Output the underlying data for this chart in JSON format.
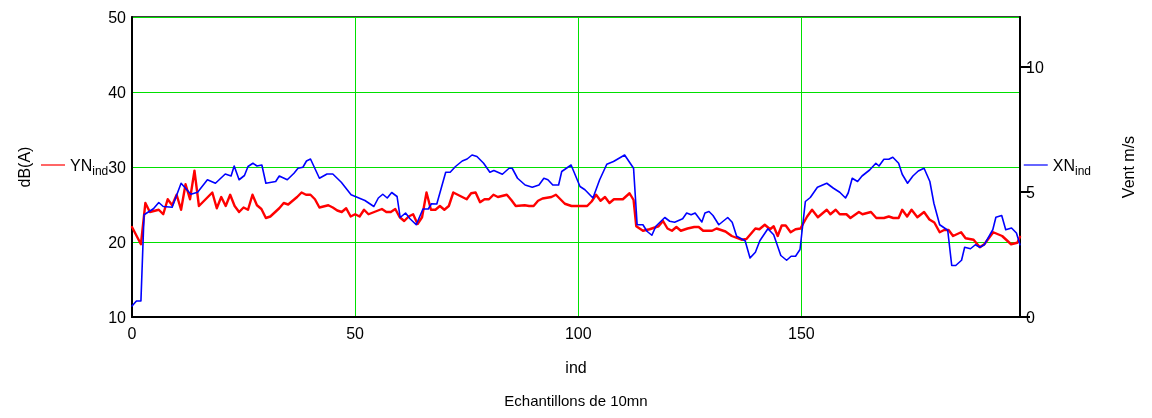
{
  "chart_data": {
    "type": "line",
    "xlabel": "ind",
    "ylabel": "dB(A)",
    "y2label": "Vent m/s",
    "annotations": [
      "Echantillons de 10mn"
    ],
    "xlim": [
      0,
      199
    ],
    "xticks": [
      0,
      50,
      100,
      150
    ],
    "ylim": [
      10,
      50
    ],
    "yticks": [
      10,
      20,
      30,
      40,
      50
    ],
    "y2lim": [
      0,
      12
    ],
    "y2ticks": [
      0,
      5,
      10
    ],
    "grid": true,
    "legend": "left",
    "marker": "none",
    "line_style": "solid",
    "series": [
      {
        "name": "YN$_{ind}$",
        "color": "#ff0000",
        "x": [
          0,
          2,
          3,
          4,
          6,
          7,
          8,
          9,
          10,
          11,
          12,
          13,
          14,
          15,
          18,
          19,
          20,
          21,
          22,
          23,
          24,
          25,
          26,
          27,
          28,
          29,
          30,
          31,
          33,
          34,
          35,
          37,
          38,
          39,
          40,
          41,
          42,
          44,
          45,
          46,
          47,
          48,
          49,
          50,
          51,
          52,
          53,
          56,
          57,
          58,
          59,
          60,
          61,
          62,
          63,
          64,
          65,
          66,
          67,
          68,
          69,
          70,
          71,
          72,
          74,
          75,
          76,
          77,
          78,
          79,
          80,
          81,
          82,
          84,
          85,
          86,
          88,
          89,
          90,
          91,
          92,
          94,
          95,
          97,
          98.5,
          102,
          103,
          104,
          105,
          106,
          107,
          108,
          110,
          111.5,
          112.4,
          113,
          114.5,
          116,
          118,
          119,
          120,
          121,
          122,
          123,
          124.5,
          126,
          127,
          128,
          130,
          131,
          133,
          134.4,
          136.6,
          137.7,
          139.7,
          140.6,
          141.8,
          143,
          143.8,
          144.7,
          145.6,
          146.5,
          147.6,
          148.7,
          149.8,
          151.3,
          152.4,
          153.7,
          155.7,
          156.5,
          157.7,
          158.6,
          160.1,
          161,
          162.9,
          163.7,
          165.6,
          166.8,
          168.5,
          169.6,
          170.6,
          171.8,
          172.6,
          173.7,
          174.7,
          176,
          177.5,
          178.7,
          179.8,
          181,
          182,
          183,
          184,
          185.8,
          186.8,
          188.6,
          190,
          191,
          193,
          195,
          197,
          198.4,
          199
        ],
        "values": [
          22.0,
          19.7,
          25.2,
          24.0,
          24.3,
          23.7,
          25.7,
          24.9,
          26.3,
          24.3,
          27.7,
          25.7,
          29.5,
          24.8,
          26.6,
          24.5,
          26.0,
          24.8,
          26.3,
          24.8,
          24.0,
          24.6,
          24.3,
          26.3,
          24.9,
          24.4,
          23.2,
          23.4,
          24.5,
          25.2,
          25.0,
          26.0,
          26.6,
          26.3,
          26.3,
          25.7,
          24.6,
          24.9,
          24.6,
          24.2,
          24.0,
          24.5,
          23.4,
          23.7,
          23.4,
          24.3,
          23.7,
          24.4,
          24.0,
          24.0,
          24.4,
          23.3,
          22.8,
          23.4,
          23.7,
          22.4,
          23.3,
          26.6,
          24.3,
          24.3,
          24.8,
          24.3,
          24.8,
          26.6,
          26.0,
          25.7,
          26.5,
          26.6,
          25.3,
          25.7,
          25.7,
          26.3,
          26.0,
          26.3,
          25.6,
          24.8,
          24.9,
          24.8,
          24.8,
          25.5,
          25.8,
          26.0,
          26.3,
          25.1,
          24.8,
          24.8,
          25.4,
          26.3,
          25.5,
          26.0,
          25.2,
          25.7,
          25.7,
          26.5,
          25.6,
          22.1,
          21.5,
          21.7,
          22.1,
          22.8,
          21.8,
          21.5,
          22.0,
          21.5,
          21.8,
          22.0,
          22.0,
          21.5,
          21.5,
          21.8,
          21.4,
          20.8,
          20.3,
          20.4,
          21.8,
          21.7,
          22.3,
          21.7,
          22.1,
          20.8,
          22.2,
          22.2,
          21.3,
          21.7,
          21.8,
          23.4,
          24.3,
          23.3,
          24.3,
          23.7,
          24.3,
          23.7,
          23.7,
          23.2,
          24.0,
          23.7,
          24.0,
          23.2,
          23.2,
          23.4,
          23.2,
          23.2,
          24.3,
          23.4,
          24.3,
          23.3,
          24.0,
          23.0,
          22.6,
          21.3,
          21.6,
          21.6,
          20.8,
          21.3,
          20.5,
          20.3,
          19.3,
          19.7,
          21.3,
          20.8,
          19.7,
          19.9,
          20.7
        ]
      },
      {
        "name": "XN$_{ind}$",
        "color": "#0000ff",
        "axis": "y2",
        "x": [
          0,
          1,
          2,
          2.7,
          4.8,
          6,
          7,
          9,
          11,
          13.2,
          14.7,
          16.9,
          18.7,
          20.9,
          22.2,
          22.9,
          24,
          25.2,
          26,
          27.1,
          28,
          29.1,
          30,
          32.2,
          33,
          34.8,
          36.3,
          37.2,
          38.3,
          39.1,
          40,
          42,
          43.7,
          45,
          46.9,
          49.1,
          52.2,
          54.2,
          55.2,
          56.2,
          57.2,
          58.2,
          59.4,
          60.1,
          61.3,
          62.3,
          63.7,
          65.2,
          66.4,
          67.1,
          68.3,
          69.2,
          70.3,
          71.3,
          72.5,
          74,
          75.1,
          76.2,
          77.3,
          78.8,
          80.2,
          81.1,
          83,
          84.5,
          85.2,
          86.4,
          88.1,
          89.7,
          91.2,
          92.3,
          93.2,
          94.3,
          95.6,
          96.3,
          98.4,
          100.4,
          101.5,
          103.3,
          104.8,
          106.4,
          107.9,
          110.4,
          112.4,
          113.2,
          114.5,
          115.4,
          116.5,
          117.4,
          119.4,
          120.5,
          121.6,
          123.4,
          124.3,
          125.3,
          126.2,
          127.7,
          128.4,
          129.3,
          130.2,
          131.5,
          133.5,
          134.5,
          135.5,
          137.4,
          138.5,
          139.7,
          140.7,
          142.5,
          143.8,
          145.4,
          146.7,
          147.7,
          148.7,
          149.7,
          150.9,
          152,
          153.6,
          155.7,
          157.2,
          158.6,
          159.9,
          160.5,
          161.4,
          162.6,
          163.6,
          165.3,
          166.7,
          167.4,
          168.5,
          169.6,
          170.5,
          171.8,
          172.6,
          173.8,
          175,
          176.2,
          177.5,
          178.8,
          179.7,
          181,
          182.8,
          183.7,
          184.6,
          185.9,
          186.6,
          187.9,
          189,
          190,
          191,
          192.9,
          193.6,
          194.9,
          195.8,
          197.1,
          198.2,
          199
        ],
        "values": [
          0.44,
          0.64,
          0.64,
          4.09,
          4.33,
          4.58,
          4.42,
          4.39,
          5.35,
          4.91,
          4.99,
          5.49,
          5.35,
          5.72,
          5.64,
          6.04,
          5.49,
          5.66,
          6.02,
          6.15,
          6.04,
          6.08,
          5.35,
          5.42,
          5.64,
          5.49,
          5.75,
          5.95,
          5.99,
          6.24,
          6.32,
          5.55,
          5.72,
          5.72,
          5.39,
          4.89,
          4.66,
          4.42,
          4.76,
          4.91,
          4.76,
          4.98,
          4.82,
          3.98,
          4.16,
          3.93,
          3.69,
          4.32,
          4.32,
          4.53,
          4.52,
          5.09,
          5.79,
          5.79,
          6.02,
          6.24,
          6.32,
          6.48,
          6.42,
          6.15,
          5.79,
          5.86,
          5.71,
          5.95,
          5.95,
          5.55,
          5.28,
          5.19,
          5.28,
          5.55,
          5.49,
          5.28,
          5.28,
          5.82,
          6.08,
          5.22,
          5.09,
          4.76,
          5.49,
          6.11,
          6.22,
          6.48,
          5.95,
          3.69,
          3.69,
          3.43,
          3.27,
          3.63,
          3.98,
          3.83,
          3.79,
          3.93,
          4.16,
          4.09,
          4.16,
          3.8,
          4.16,
          4.22,
          4.06,
          3.69,
          3.98,
          3.79,
          3.23,
          3.05,
          2.36,
          2.59,
          3.05,
          3.53,
          3.29,
          2.46,
          2.27,
          2.43,
          2.43,
          2.7,
          4.62,
          4.78,
          5.19,
          5.35,
          5.15,
          4.99,
          4.76,
          4.96,
          5.55,
          5.42,
          5.64,
          5.88,
          6.15,
          6.04,
          6.31,
          6.31,
          6.39,
          6.15,
          5.71,
          5.35,
          5.64,
          5.84,
          5.95,
          5.42,
          4.55,
          3.69,
          3.47,
          2.06,
          2.06,
          2.27,
          2.79,
          2.73,
          2.89,
          2.79,
          2.89,
          3.49,
          3.99,
          4.06,
          3.49,
          3.56,
          3.36,
          2.89
        ]
      }
    ]
  }
}
